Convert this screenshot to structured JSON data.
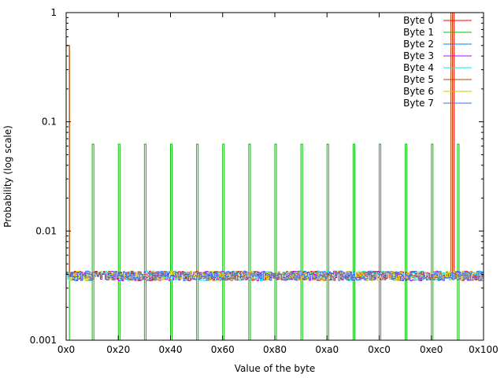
{
  "chart_data": {
    "type": "line",
    "title": "",
    "xlabel": "Value of the byte",
    "ylabel": "Probability (log scale)",
    "xscale": "linear",
    "yscale": "log",
    "xlim": [
      0,
      256
    ],
    "ylim": [
      0.001,
      1
    ],
    "grid": false,
    "legend_position": "top-right",
    "x_ticks": [
      {
        "value": 0,
        "label": "0x0"
      },
      {
        "value": 32,
        "label": "0x20"
      },
      {
        "value": 64,
        "label": "0x40"
      },
      {
        "value": 96,
        "label": "0x60"
      },
      {
        "value": 128,
        "label": "0x80"
      },
      {
        "value": 160,
        "label": "0xa0"
      },
      {
        "value": 192,
        "label": "0xc0"
      },
      {
        "value": 224,
        "label": "0xe0"
      },
      {
        "value": 256,
        "label": "0x100"
      }
    ],
    "y_ticks": [
      {
        "value": 0.001,
        "label": "0.001"
      },
      {
        "value": 0.01,
        "label": "0.01"
      },
      {
        "value": 0.1,
        "label": "0.1"
      },
      {
        "value": 1,
        "label": "1"
      }
    ],
    "series": [
      {
        "name": "Byte 0",
        "color": "#ff0000",
        "style": "uniform-noisy",
        "baseline": 0.0039,
        "spikes": [
          {
            "x": 0,
            "y": 0.5
          },
          {
            "x": 1,
            "y": 0.5
          },
          {
            "x": 237,
            "y": 1.0
          }
        ]
      },
      {
        "name": "Byte 1",
        "color": "#00c000",
        "style": "comb",
        "spikes": [
          {
            "x": 0,
            "y": 0.5
          },
          {
            "x": 1,
            "y": 0.5
          },
          {
            "x": 16,
            "y": 0.0625
          },
          {
            "x": 32,
            "y": 0.0625
          },
          {
            "x": 48,
            "y": 0.0625
          },
          {
            "x": 64,
            "y": 0.0625
          },
          {
            "x": 80,
            "y": 0.0625
          },
          {
            "x": 96,
            "y": 0.0625
          },
          {
            "x": 112,
            "y": 0.0625
          },
          {
            "x": 128,
            "y": 0.0625
          },
          {
            "x": 144,
            "y": 0.0625
          },
          {
            "x": 160,
            "y": 0.0625
          },
          {
            "x": 176,
            "y": 0.0625
          },
          {
            "x": 192,
            "y": 0.0625
          },
          {
            "x": 208,
            "y": 0.0625
          },
          {
            "x": 224,
            "y": 0.0625
          },
          {
            "x": 240,
            "y": 0.0625
          }
        ]
      },
      {
        "name": "Byte 2",
        "color": "#0080ff",
        "style": "uniform-noisy",
        "baseline": 0.0039
      },
      {
        "name": "Byte 3",
        "color": "#c000ff",
        "style": "uniform-noisy",
        "baseline": 0.0039
      },
      {
        "name": "Byte 4",
        "color": "#00eeee",
        "style": "uniform-noisy",
        "baseline": 0.0039
      },
      {
        "name": "Byte 5",
        "color": "#c04000",
        "style": "spikes",
        "baseline": 0.0039,
        "spikes": [
          {
            "x": 0,
            "y": 0.5
          },
          {
            "x": 1,
            "y": 0.5
          },
          {
            "x": 236,
            "y": 1.0
          }
        ]
      },
      {
        "name": "Byte 6",
        "color": "#c8c800",
        "style": "uniform-noisy",
        "baseline": 0.0039
      },
      {
        "name": "Byte 7",
        "color": "#4169e1",
        "style": "uniform-noisy",
        "baseline": 0.0039
      }
    ]
  }
}
